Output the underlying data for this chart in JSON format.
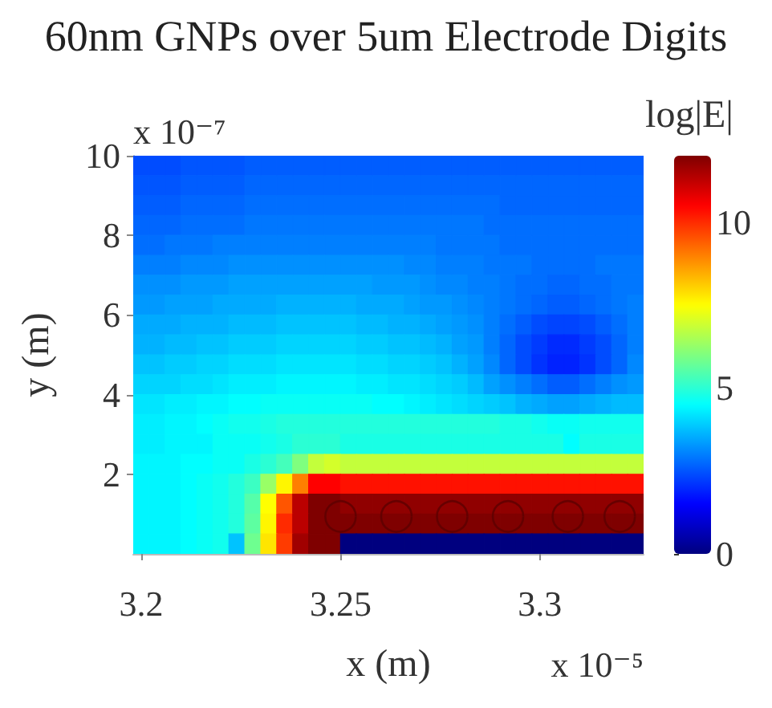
{
  "chart_data": {
    "type": "heatmap",
    "title": "60nm GNPs over 5um Electrode Digits",
    "xlabel": "x (m)",
    "ylabel": "y (m)",
    "clabel": "log|E|",
    "annotations": [
      "x 10⁻⁷",
      "x 10⁻⁵"
    ],
    "xlim": [
      3.198,
      3.326
    ],
    "xticks": [
      3.2,
      3.25,
      3.3
    ],
    "ylim": [
      0,
      10
    ],
    "yticks": [
      2,
      4,
      6,
      8,
      10
    ],
    "clim": [
      0,
      12
    ],
    "cticks": [
      0,
      5,
      10
    ],
    "marker": "circle",
    "cells": [
      [
        2.4,
        2.4,
        2.4,
        2.5,
        2.5,
        2.5,
        2.5,
        2.6,
        2.6,
        2.6,
        2.6,
        2.6,
        2.6,
        2.6,
        2.6,
        2.6,
        2.6,
        2.6,
        2.6,
        2.6,
        2.6,
        2.6,
        2.6,
        2.6,
        2.6,
        2.6,
        2.6,
        2.6,
        2.6,
        2.6,
        2.6,
        2.6
      ],
      [
        2.5,
        2.5,
        2.5,
        2.6,
        2.6,
        2.6,
        2.6,
        2.7,
        2.7,
        2.7,
        2.7,
        2.7,
        2.7,
        2.7,
        2.7,
        2.7,
        2.7,
        2.7,
        2.7,
        2.7,
        2.7,
        2.7,
        2.7,
        2.7,
        2.7,
        2.7,
        2.7,
        2.7,
        2.7,
        2.7,
        2.7,
        2.7
      ],
      [
        2.6,
        2.6,
        2.6,
        2.7,
        2.7,
        2.7,
        2.7,
        2.8,
        2.8,
        2.8,
        2.8,
        2.8,
        2.8,
        2.8,
        2.8,
        2.8,
        2.8,
        2.8,
        2.8,
        2.8,
        2.8,
        2.8,
        2.8,
        2.7,
        2.7,
        2.7,
        2.7,
        2.7,
        2.7,
        2.7,
        2.7,
        2.7
      ],
      [
        2.7,
        2.7,
        2.7,
        2.8,
        2.8,
        2.8,
        2.8,
        2.9,
        2.9,
        2.9,
        2.9,
        2.9,
        2.9,
        2.9,
        2.9,
        2.9,
        2.9,
        2.9,
        2.9,
        2.9,
        2.9,
        2.9,
        2.8,
        2.8,
        2.8,
        2.8,
        2.8,
        2.8,
        2.8,
        2.8,
        2.8,
        2.8
      ],
      [
        2.8,
        2.8,
        2.9,
        2.9,
        2.9,
        3.0,
        3.0,
        3.0,
        3.0,
        3.0,
        3.0,
        3.0,
        3.0,
        3.0,
        3.0,
        3.0,
        3.0,
        3.0,
        3.0,
        2.9,
        2.9,
        2.9,
        2.9,
        2.8,
        2.8,
        2.8,
        2.8,
        2.8,
        2.8,
        2.8,
        2.8,
        2.8
      ],
      [
        3.0,
        3.0,
        3.0,
        3.1,
        3.1,
        3.1,
        3.2,
        3.2,
        3.2,
        3.2,
        3.2,
        3.2,
        3.2,
        3.2,
        3.2,
        3.2,
        3.2,
        3.1,
        3.1,
        3.0,
        3.0,
        3.0,
        2.9,
        2.9,
        2.9,
        2.8,
        2.8,
        2.8,
        2.8,
        2.9,
        2.9,
        2.9
      ],
      [
        3.2,
        3.2,
        3.2,
        3.3,
        3.3,
        3.3,
        3.4,
        3.4,
        3.4,
        3.4,
        3.4,
        3.4,
        3.4,
        3.4,
        3.4,
        3.3,
        3.3,
        3.3,
        3.2,
        3.1,
        3.1,
        3.0,
        3.0,
        2.9,
        2.8,
        2.8,
        2.7,
        2.7,
        2.8,
        2.8,
        2.9,
        2.9
      ],
      [
        3.3,
        3.3,
        3.4,
        3.4,
        3.4,
        3.5,
        3.5,
        3.5,
        3.5,
        3.6,
        3.6,
        3.6,
        3.6,
        3.6,
        3.5,
        3.5,
        3.5,
        3.4,
        3.3,
        3.3,
        3.2,
        3.1,
        3.0,
        2.9,
        2.8,
        2.7,
        2.6,
        2.6,
        2.7,
        2.8,
        2.9,
        3.0
      ],
      [
        3.5,
        3.5,
        3.5,
        3.6,
        3.6,
        3.6,
        3.7,
        3.7,
        3.7,
        3.8,
        3.8,
        3.8,
        3.8,
        3.8,
        3.7,
        3.7,
        3.6,
        3.6,
        3.5,
        3.4,
        3.3,
        3.2,
        3.0,
        2.8,
        2.6,
        2.4,
        2.3,
        2.3,
        2.4,
        2.6,
        2.8,
        3.0
      ],
      [
        3.6,
        3.6,
        3.7,
        3.7,
        3.8,
        3.8,
        3.9,
        3.9,
        3.9,
        4.0,
        4.0,
        4.0,
        4.0,
        4.0,
        3.9,
        3.9,
        3.8,
        3.8,
        3.7,
        3.6,
        3.4,
        3.3,
        3.0,
        2.7,
        2.4,
        2.2,
        2.0,
        2.0,
        2.2,
        2.4,
        2.7,
        3.0
      ],
      [
        3.8,
        3.8,
        3.9,
        3.9,
        4.0,
        4.0,
        4.1,
        4.1,
        4.1,
        4.2,
        4.2,
        4.2,
        4.2,
        4.2,
        4.1,
        4.1,
        4.0,
        4.0,
        3.9,
        3.8,
        3.6,
        3.4,
        3.1,
        2.7,
        2.4,
        2.1,
        1.9,
        1.9,
        2.1,
        2.4,
        2.7,
        3.1
      ],
      [
        4.0,
        4.0,
        4.0,
        4.1,
        4.1,
        4.2,
        4.3,
        4.3,
        4.3,
        4.4,
        4.4,
        4.4,
        4.4,
        4.4,
        4.3,
        4.3,
        4.2,
        4.2,
        4.1,
        4.0,
        3.9,
        3.7,
        3.4,
        3.2,
        3.0,
        2.8,
        2.6,
        2.6,
        2.8,
        3.0,
        3.2,
        3.3
      ],
      [
        4.2,
        4.2,
        4.3,
        4.3,
        4.4,
        4.4,
        4.5,
        4.5,
        4.6,
        4.6,
        4.6,
        4.6,
        4.6,
        4.6,
        4.6,
        4.5,
        4.5,
        4.4,
        4.3,
        4.2,
        4.1,
        4.0,
        3.9,
        3.8,
        3.6,
        3.5,
        3.4,
        3.4,
        3.5,
        3.6,
        3.7,
        3.7
      ],
      [
        4.3,
        4.3,
        4.4,
        4.4,
        4.5,
        4.6,
        4.7,
        4.7,
        4.8,
        4.9,
        4.9,
        4.9,
        4.9,
        4.9,
        4.9,
        4.9,
        4.9,
        4.9,
        4.9,
        4.9,
        4.9,
        4.9,
        4.9,
        4.8,
        4.8,
        4.7,
        4.6,
        4.6,
        4.7,
        4.7,
        4.7,
        4.7
      ],
      [
        4.3,
        4.3,
        4.4,
        4.4,
        4.4,
        4.6,
        4.6,
        4.6,
        4.7,
        4.8,
        5.0,
        5.0,
        5.0,
        4.8,
        4.8,
        4.8,
        4.8,
        4.8,
        4.8,
        4.8,
        4.8,
        4.8,
        4.8,
        4.8,
        4.8,
        4.8,
        4.8,
        4.5,
        4.8,
        4.8,
        4.8,
        4.8
      ],
      [
        4.4,
        4.4,
        4.4,
        4.5,
        4.5,
        4.6,
        4.6,
        4.8,
        5.0,
        5.3,
        6.0,
        6.8,
        7.0,
        6.8,
        6.8,
        6.8,
        6.8,
        6.8,
        6.8,
        6.8,
        6.8,
        6.8,
        6.8,
        6.8,
        6.8,
        6.8,
        6.8,
        6.8,
        6.8,
        6.8,
        6.8,
        6.8
      ],
      [
        4.4,
        4.4,
        4.4,
        4.5,
        4.6,
        4.7,
        4.9,
        5.2,
        6.3,
        7.6,
        9.0,
        10.5,
        10.5,
        10.3,
        10.3,
        10.3,
        10.3,
        10.3,
        10.3,
        10.3,
        10.3,
        10.3,
        10.3,
        10.3,
        10.3,
        10.3,
        10.3,
        10.3,
        10.3,
        10.3,
        10.3,
        10.3
      ],
      [
        4.4,
        4.4,
        4.4,
        4.5,
        4.6,
        4.7,
        4.9,
        5.5,
        7.5,
        9.5,
        11.3,
        12,
        12,
        11.8,
        11.8,
        11.8,
        11.8,
        11.8,
        11.8,
        11.8,
        11.8,
        11.8,
        11.8,
        11.8,
        11.8,
        11.8,
        11.8,
        11.8,
        11.8,
        11.8,
        11.8,
        11.8
      ],
      [
        4.4,
        4.4,
        4.4,
        4.5,
        4.6,
        4.7,
        4.9,
        5.6,
        7.6,
        10.0,
        11.3,
        12,
        12,
        12,
        12,
        12,
        12,
        12,
        12,
        12,
        12,
        12,
        12,
        12,
        12,
        12,
        12,
        12,
        12,
        12,
        12,
        12
      ],
      [
        4.4,
        4.4,
        4.4,
        4.5,
        4.6,
        4.7,
        3.8,
        5.8,
        7.8,
        9.8,
        11.6,
        12,
        12,
        0,
        0,
        0,
        0,
        0,
        0,
        0,
        0,
        0,
        0,
        0,
        0,
        0,
        0,
        0,
        0,
        0,
        0,
        0
      ]
    ],
    "series": [
      {
        "type": "scatter",
        "color": "#5c0000",
        "x": [
          3.25,
          3.264,
          3.278,
          3.292,
          3.307,
          3.32
        ],
        "values": [
          0.94,
          0.94,
          0.94,
          0.94,
          0.94,
          0.94
        ]
      }
    ]
  }
}
